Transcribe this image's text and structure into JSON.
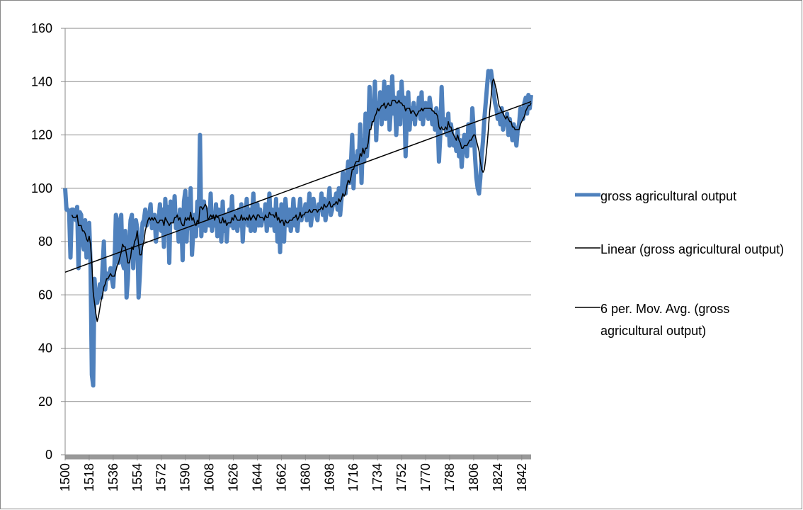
{
  "chart_data": {
    "type": "line",
    "x": [
      1500,
      1501,
      1502,
      1503,
      1504,
      1505,
      1506,
      1507,
      1508,
      1509,
      1510,
      1511,
      1512,
      1513,
      1514,
      1515,
      1516,
      1517,
      1518,
      1519,
      1520,
      1521,
      1522,
      1523,
      1524,
      1525,
      1526,
      1527,
      1528,
      1529,
      1530,
      1531,
      1532,
      1533,
      1534,
      1535,
      1536,
      1537,
      1538,
      1539,
      1540,
      1541,
      1542,
      1543,
      1544,
      1545,
      1546,
      1547,
      1548,
      1549,
      1550,
      1551,
      1552,
      1553,
      1554,
      1555,
      1556,
      1557,
      1558,
      1559,
      1560,
      1561,
      1562,
      1563,
      1564,
      1565,
      1566,
      1567,
      1568,
      1569,
      1570,
      1571,
      1572,
      1573,
      1574,
      1575,
      1576,
      1577,
      1578,
      1579,
      1580,
      1581,
      1582,
      1583,
      1584,
      1585,
      1586,
      1587,
      1588,
      1589,
      1590,
      1591,
      1592,
      1593,
      1594,
      1595,
      1596,
      1597,
      1598,
      1599,
      1600,
      1601,
      1602,
      1603,
      1604,
      1605,
      1606,
      1607,
      1608,
      1609,
      1610,
      1611,
      1612,
      1613,
      1614,
      1615,
      1616,
      1617,
      1618,
      1619,
      1620,
      1621,
      1622,
      1623,
      1624,
      1625,
      1626,
      1627,
      1628,
      1629,
      1630,
      1631,
      1632,
      1633,
      1634,
      1635,
      1636,
      1637,
      1638,
      1639,
      1640,
      1641,
      1642,
      1643,
      1644,
      1645,
      1646,
      1647,
      1648,
      1649,
      1650,
      1651,
      1652,
      1653,
      1654,
      1655,
      1656,
      1657,
      1658,
      1659,
      1660,
      1661,
      1662,
      1663,
      1664,
      1665,
      1666,
      1667,
      1668,
      1669,
      1670,
      1671,
      1672,
      1673,
      1674,
      1675,
      1676,
      1677,
      1678,
      1679,
      1680,
      1681,
      1682,
      1683,
      1684,
      1685,
      1686,
      1687,
      1688,
      1689,
      1690,
      1691,
      1692,
      1693,
      1694,
      1695,
      1696,
      1697,
      1698,
      1699,
      1700,
      1701,
      1702,
      1703,
      1704,
      1705,
      1706,
      1707,
      1708,
      1709,
      1710,
      1711,
      1712,
      1713,
      1714,
      1715,
      1716,
      1717,
      1718,
      1719,
      1720,
      1721,
      1722,
      1723,
      1724,
      1725,
      1726,
      1727,
      1728,
      1729,
      1730,
      1731,
      1732,
      1733,
      1734,
      1735,
      1736,
      1737,
      1738,
      1739,
      1740,
      1741,
      1742,
      1743,
      1744,
      1745,
      1746,
      1747,
      1748,
      1749,
      1750,
      1751,
      1752,
      1753,
      1754,
      1755,
      1756,
      1757,
      1758,
      1759,
      1760,
      1761,
      1762,
      1763,
      1764,
      1765,
      1766,
      1767,
      1768,
      1769,
      1770,
      1771,
      1772,
      1773,
      1774,
      1775,
      1776,
      1777,
      1778,
      1779,
      1780,
      1781,
      1782,
      1783,
      1784,
      1785,
      1786,
      1787,
      1788,
      1789,
      1790,
      1791,
      1792,
      1793,
      1794,
      1795,
      1796,
      1797,
      1798,
      1799,
      1800,
      1801,
      1802,
      1803,
      1804,
      1805,
      1806,
      1807,
      1808,
      1809,
      1810,
      1811,
      1812,
      1813,
      1814,
      1815,
      1816,
      1817,
      1818,
      1819,
      1820,
      1821,
      1822,
      1823,
      1824,
      1825,
      1826,
      1827,
      1828,
      1829,
      1830,
      1831,
      1832,
      1833,
      1834,
      1835,
      1836,
      1837,
      1838,
      1839,
      1840,
      1841,
      1842,
      1843,
      1844,
      1845,
      1846,
      1847,
      1848,
      1849
    ],
    "series": [
      {
        "name": "gross agricultural output",
        "color": "#4f81bd",
        "width": 6,
        "values": [
          100,
          92,
          92,
          91,
          74,
          92,
          92,
          90,
          88,
          93,
          70,
          91,
          90,
          80,
          77,
          88,
          74,
          80,
          87,
          72,
          30,
          26,
          66,
          58,
          57,
          60,
          64,
          59,
          70,
          80,
          62,
          68,
          66,
          67,
          70,
          66,
          63,
          72,
          90,
          88,
          72,
          80,
          90,
          72,
          70,
          84,
          59,
          66,
          80,
          88,
          90,
          70,
          82,
          88,
          85,
          59,
          68,
          80,
          87,
          88,
          92,
          86,
          88,
          90,
          94,
          85,
          88,
          90,
          80,
          86,
          88,
          94,
          84,
          92,
          78,
          96,
          86,
          93,
          72,
          95,
          90,
          88,
          97,
          85,
          90,
          80,
          92,
          88,
          73,
          95,
          99,
          80,
          96,
          85,
          100,
          75,
          84,
          90,
          82,
          95,
          86,
          120,
          82,
          90,
          95,
          84,
          88,
          92,
          86,
          98,
          84,
          90,
          86,
          94,
          82,
          92,
          88,
          80,
          95,
          84,
          90,
          80,
          88,
          92,
          86,
          97,
          85,
          91,
          88,
          84,
          92,
          86,
          94,
          80,
          90,
          88,
          96,
          86,
          92,
          84,
          90,
          98,
          84,
          88,
          94,
          86,
          92,
          86,
          90,
          88,
          94,
          84,
          90,
          98,
          86,
          92,
          88,
          84,
          96,
          80,
          92,
          76,
          94,
          88,
          80,
          96,
          90,
          86,
          92,
          84,
          88,
          96,
          86,
          92,
          84,
          90,
          96,
          88,
          92,
          90,
          94,
          88,
          92,
          98,
          86,
          90,
          96,
          92,
          90,
          88,
          94,
          92,
          98,
          90,
          96,
          88,
          92,
          94,
          100,
          90,
          92,
          96,
          94,
          98,
          92,
          100,
          90,
          96,
          106,
          100,
          98,
          104,
          110,
          102,
          108,
          120,
          100,
          112,
          106,
          114,
          110,
          124,
          102,
          118,
          110,
          128,
          112,
          120,
          138,
          124,
          130,
          126,
          140,
          118,
          132,
          128,
          136,
          124,
          130,
          140,
          126,
          132,
          138,
          122,
          130,
          142,
          128,
          134,
          120,
          130,
          136,
          124,
          140,
          130,
          134,
          112,
          128,
          136,
          122,
          130,
          126,
          132,
          124,
          130,
          128,
          134,
          126,
          136,
          124,
          130,
          132,
          128,
          126,
          134,
          130,
          124,
          128,
          122,
          130,
          126,
          110,
          120,
          138,
          124,
          126,
          122,
          120,
          128,
          116,
          124,
          120,
          116,
          118,
          114,
          122,
          112,
          118,
          108,
          116,
          120,
          118,
          112,
          124,
          120,
          116,
          130,
          122,
          112,
          104,
          100,
          98,
          104,
          112,
          118,
          126,
          132,
          138,
          144,
          142,
          144,
          140,
          136,
          132,
          130,
          126,
          128,
          124,
          130,
          122,
          126,
          124,
          128,
          120,
          126,
          122,
          118,
          124,
          120,
          116,
          122,
          124,
          130,
          128,
          126,
          132,
          134,
          128,
          135,
          130,
          135
        ]
      },
      {
        "name": "6 per. Mov. Avg. (gross agricultural output)",
        "color": "#000000",
        "width": 1.5,
        "values": [
          null,
          null,
          null,
          null,
          null,
          90,
          89,
          89,
          89,
          90,
          86,
          86,
          86,
          84,
          84,
          83,
          81,
          80,
          82,
          79,
          72,
          61,
          57,
          53,
          50,
          52,
          55,
          58,
          60,
          63,
          64,
          66,
          66,
          67,
          68,
          67,
          67,
          67,
          69,
          71,
          72,
          74,
          76,
          79,
          78,
          78,
          75,
          72,
          72,
          74,
          78,
          77,
          80,
          81,
          84,
          79,
          75,
          75,
          78,
          80,
          84,
          86,
          88,
          89,
          88,
          89,
          88,
          89,
          88,
          87,
          87,
          88,
          88,
          88,
          86,
          89,
          88,
          87,
          86,
          87,
          87,
          87,
          89,
          89,
          90,
          88,
          89,
          87,
          86,
          86,
          89,
          88,
          89,
          88,
          91,
          88,
          89,
          87,
          86,
          88,
          87,
          93,
          93,
          92,
          93,
          94,
          93,
          88,
          89,
          90,
          89,
          90,
          88,
          90,
          89,
          89,
          87,
          87,
          89,
          87,
          88,
          86,
          87,
          87,
          87,
          89,
          88,
          90,
          89,
          88,
          88,
          88,
          90,
          88,
          89,
          88,
          89,
          88,
          90,
          88,
          89,
          90,
          89,
          88,
          90,
          90,
          89,
          89,
          89,
          88,
          90,
          89,
          89,
          91,
          90,
          90,
          90,
          89,
          91,
          88,
          89,
          87,
          88,
          88,
          86,
          88,
          87,
          87,
          88,
          88,
          88,
          89,
          89,
          90,
          88,
          89,
          91,
          89,
          90,
          90,
          91,
          91,
          91,
          92,
          91,
          91,
          92,
          92,
          92,
          91,
          92,
          92,
          93,
          92,
          94,
          93,
          93,
          94,
          95,
          93,
          93,
          94,
          94,
          95,
          94,
          96,
          95,
          96,
          98,
          97,
          98,
          101,
          103,
          102,
          104,
          107,
          107,
          109,
          110,
          110,
          110,
          113,
          112,
          115,
          113,
          115,
          115,
          117,
          122,
          122,
          125,
          125,
          127,
          128,
          130,
          129,
          130,
          131,
          131,
          132,
          130,
          131,
          132,
          131,
          131,
          133,
          133,
          133,
          132,
          132,
          133,
          132,
          132,
          131,
          131,
          129,
          130,
          130,
          130,
          128,
          129,
          129,
          128,
          127,
          128,
          129,
          129,
          130,
          129,
          130,
          130,
          130,
          130,
          130,
          130,
          129,
          129,
          128,
          128,
          127,
          123,
          122,
          123,
          122,
          122,
          123,
          122,
          125,
          123,
          123,
          121,
          120,
          119,
          118,
          120,
          118,
          117,
          115,
          115,
          116,
          116,
          116,
          117,
          118,
          118,
          119,
          120,
          120,
          118,
          116,
          114,
          110,
          107,
          106,
          107,
          111,
          116,
          122,
          129,
          134,
          140,
          141,
          139,
          137,
          134,
          131,
          130,
          129,
          128,
          127,
          126,
          127,
          126,
          125,
          125,
          123,
          123,
          122,
          122,
          122,
          122,
          124,
          125,
          126,
          127,
          129,
          130,
          131,
          131,
          132
        ]
      }
    ],
    "trendline": {
      "name": "Linear (gross agricultural output)",
      "color": "#000000",
      "x": [
        1500,
        1849
      ],
      "values": [
        68.5,
        132.5
      ]
    },
    "legend_order": [
      "series.0",
      "trendline",
      "series.1"
    ],
    "xlim": [
      1500,
      1849
    ],
    "xticks": [
      1500,
      1518,
      1536,
      1554,
      1572,
      1590,
      1608,
      1626,
      1644,
      1662,
      1680,
      1698,
      1716,
      1734,
      1752,
      1770,
      1788,
      1806,
      1824,
      1842
    ],
    "ylim": [
      0,
      160
    ],
    "yticks": [
      0,
      20,
      40,
      60,
      80,
      100,
      120,
      140,
      160
    ],
    "grid": true
  }
}
